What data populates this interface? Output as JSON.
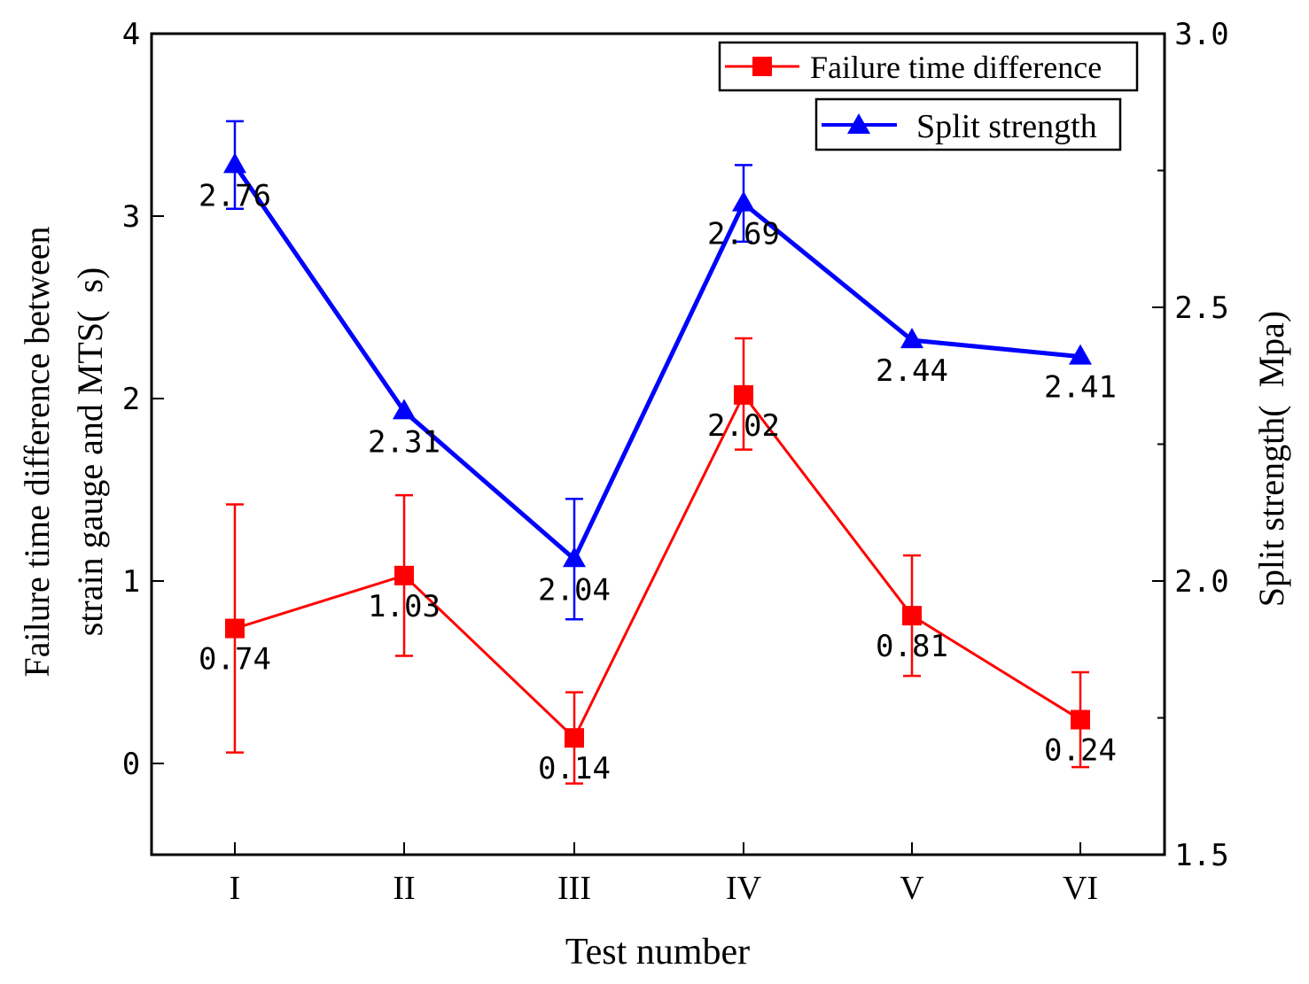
{
  "chart_data": {
    "type": "line",
    "categories": [
      "I",
      "II",
      "III",
      "IV",
      "V",
      "VI"
    ],
    "xlabel": "Test number",
    "ylabel_left": [
      "Failure time difference between",
      "strain gauge and MTS(  s)"
    ],
    "ylabel_right": "Split strength(  Mpa)",
    "ylim_left": [
      -0.5,
      4
    ],
    "ylim_right": [
      1.5,
      3.0
    ],
    "yticks_left": [
      0,
      1,
      2,
      3,
      4
    ],
    "yticks_right": [
      1.5,
      2.0,
      2.5,
      3.0
    ],
    "ytick_labels_right": [
      "1.5",
      "2.0",
      "2.5",
      "3.0"
    ],
    "series": [
      {
        "name": "Failure time difference",
        "axis": "left",
        "color": "#ff0000",
        "marker": "square",
        "values": [
          0.74,
          1.03,
          0.14,
          2.02,
          0.81,
          0.24
        ],
        "error_low": [
          0.06,
          0.59,
          -0.11,
          1.72,
          0.48,
          -0.02
        ],
        "error_high": [
          1.42,
          1.47,
          0.39,
          2.33,
          1.14,
          0.5
        ],
        "labels": [
          "0.74",
          "1.03",
          "0.14",
          "2.02",
          "0.81",
          "0.24"
        ]
      },
      {
        "name": "Split strength",
        "axis": "right",
        "color": "#0000ff",
        "marker": "triangle",
        "values": [
          2.76,
          2.31,
          2.04,
          2.69,
          2.44,
          2.41
        ],
        "error_low": [
          2.68,
          2.31,
          1.93,
          2.62,
          2.44,
          2.41
        ],
        "error_high": [
          2.84,
          2.31,
          2.15,
          2.76,
          2.44,
          2.41
        ],
        "labels": [
          "2.76",
          "2.31",
          "2.04",
          "2.69",
          "2.44",
          "2.41"
        ]
      }
    ],
    "legend": [
      "Failure time difference",
      "Split strength"
    ],
    "legend_position": "top-right",
    "grid": false
  }
}
